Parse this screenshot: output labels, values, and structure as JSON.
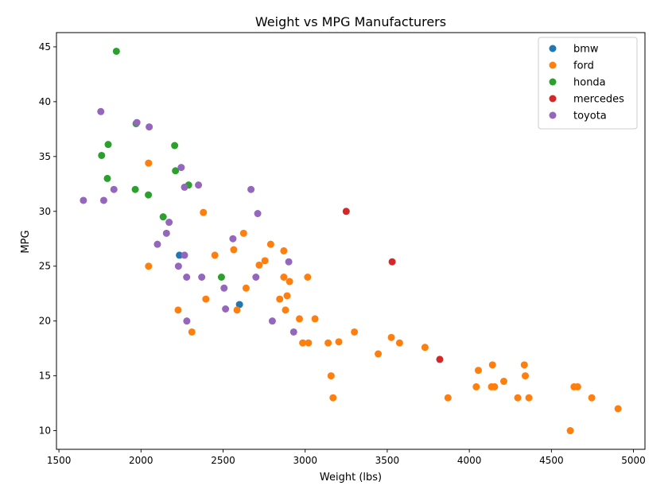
{
  "chart_data": {
    "type": "scatter",
    "title": "Weight vs MPG Manufacturers",
    "xlabel": "Weight (lbs)",
    "ylabel": "MPG",
    "xlim": [
      1485,
      5070
    ],
    "ylim": [
      8.3,
      46.3
    ],
    "xticks": [
      1500,
      2000,
      2500,
      3000,
      3500,
      4000,
      4500,
      5000
    ],
    "yticks": [
      10,
      15,
      20,
      25,
      30,
      35,
      40,
      45
    ],
    "grid": false,
    "legend_position": "top-right",
    "series": [
      {
        "name": "bmw",
        "color": "#1f77b4",
        "points": [
          [
            2234,
            26
          ],
          [
            2600,
            21.5
          ]
        ]
      },
      {
        "name": "ford",
        "color": "#ff7f0e",
        "points": [
          [
            2046,
            25
          ],
          [
            2046,
            34.4
          ],
          [
            2226,
            21
          ],
          [
            2310,
            19
          ],
          [
            2380,
            29.9
          ],
          [
            2395,
            22
          ],
          [
            2450,
            26
          ],
          [
            2565,
            26.5
          ],
          [
            2585,
            21
          ],
          [
            2625,
            28
          ],
          [
            2640,
            23
          ],
          [
            2720,
            25.1
          ],
          [
            2755,
            25.5
          ],
          [
            2790,
            27
          ],
          [
            2845,
            22
          ],
          [
            2870,
            26.4
          ],
          [
            2870,
            24
          ],
          [
            2880,
            21
          ],
          [
            2890,
            22.3
          ],
          [
            2905,
            23.6
          ],
          [
            2965,
            20.2
          ],
          [
            2985,
            18
          ],
          [
            3015,
            24
          ],
          [
            3020,
            18
          ],
          [
            3060,
            20.2
          ],
          [
            3140,
            18
          ],
          [
            3158,
            15
          ],
          [
            3170,
            13
          ],
          [
            3205,
            18.1
          ],
          [
            3300,
            19
          ],
          [
            3445,
            17
          ],
          [
            3525,
            18.5
          ],
          [
            3575,
            18
          ],
          [
            3730,
            17.6
          ],
          [
            3870,
            13
          ],
          [
            4042,
            14
          ],
          [
            4055,
            15.5
          ],
          [
            4135,
            14
          ],
          [
            4141,
            16
          ],
          [
            4154,
            14
          ],
          [
            4210,
            14.5
          ],
          [
            4295,
            13
          ],
          [
            4335,
            16
          ],
          [
            4341,
            15
          ],
          [
            4363,
            13
          ],
          [
            4615,
            10
          ],
          [
            4638,
            14
          ],
          [
            4660,
            14
          ],
          [
            4746,
            13
          ],
          [
            4906,
            12
          ]
        ]
      },
      {
        "name": "honda",
        "color": "#2ca02c",
        "points": [
          [
            1760,
            35.1
          ],
          [
            1795,
            33
          ],
          [
            1800,
            36.1
          ],
          [
            1850,
            44.6
          ],
          [
            1965,
            32
          ],
          [
            1970,
            38
          ],
          [
            2045,
            31.5
          ],
          [
            2135,
            29.5
          ],
          [
            2205,
            36
          ],
          [
            2210,
            33.7
          ],
          [
            2290,
            32.4
          ],
          [
            2490,
            24
          ]
        ]
      },
      {
        "name": "mercedes",
        "color": "#d62728",
        "points": [
          [
            3250,
            30
          ],
          [
            3530,
            25.4
          ],
          [
            3820,
            16.5
          ]
        ]
      },
      {
        "name": "toyota",
        "color": "#9467bd",
        "points": [
          [
            1649,
            31
          ],
          [
            1755,
            39.1
          ],
          [
            1773,
            31
          ],
          [
            1835,
            32
          ],
          [
            1975,
            38.1
          ],
          [
            2050,
            37.7
          ],
          [
            2100,
            27
          ],
          [
            2155,
            28
          ],
          [
            2171,
            29
          ],
          [
            2228,
            25
          ],
          [
            2245,
            34
          ],
          [
            2265,
            32.2
          ],
          [
            2265,
            26
          ],
          [
            2278,
            24
          ],
          [
            2279,
            20
          ],
          [
            2350,
            32.4
          ],
          [
            2370,
            24
          ],
          [
            2506,
            23
          ],
          [
            2515,
            21.1
          ],
          [
            2560,
            27.5
          ],
          [
            2670,
            32
          ],
          [
            2700,
            24
          ],
          [
            2711,
            29.8
          ],
          [
            2800,
            20
          ],
          [
            2900,
            25.4
          ],
          [
            2930,
            19
          ]
        ]
      }
    ]
  }
}
